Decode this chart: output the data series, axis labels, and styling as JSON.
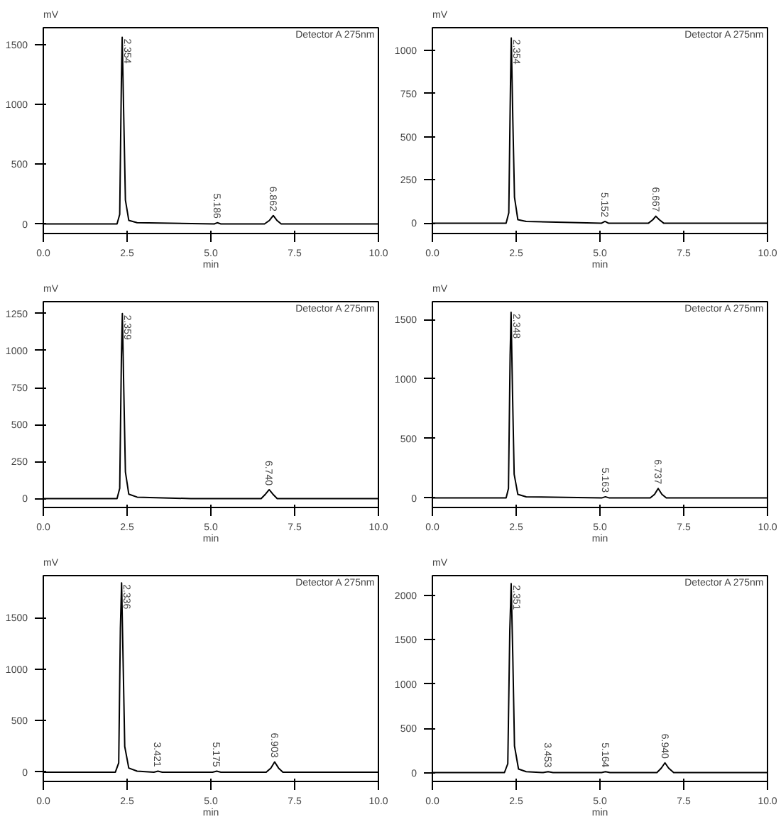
{
  "chart_data": [
    {
      "type": "line",
      "xlabel": "min",
      "ylabel": "mV",
      "xlim": [
        0,
        10
      ],
      "ylim": [
        -80,
        1640
      ],
      "xticks": [
        {
          "value": 0,
          "label": "0.0"
        },
        {
          "value": 2.5,
          "label": "2.5"
        },
        {
          "value": 5,
          "label": "5.0"
        },
        {
          "value": 7.5,
          "label": "7.5"
        },
        {
          "value": 10,
          "label": "10.0"
        }
      ],
      "yticks": [
        0,
        500,
        1000,
        1500
      ],
      "series": [
        {
          "color": "#000000",
          "x": [
            0,
            2.2,
            2.28,
            2.33,
            2.354,
            2.4,
            2.45,
            2.55,
            2.8,
            5.1,
            5.19,
            5.3,
            6.6,
            6.75,
            6.862,
            6.97,
            7.1,
            7.7,
            10
          ],
          "values": [
            0,
            0,
            80,
            1200,
            1560,
            900,
            200,
            30,
            10,
            0,
            10,
            0,
            0,
            30,
            70,
            30,
            0,
            0,
            0
          ]
        }
      ],
      "annotations": [
        "Detector A 275nm",
        {
          "text": "2.354",
          "x": 2.354,
          "y": 1560
        },
        {
          "text": "5.186",
          "x": 5.186,
          "y": 10
        },
        {
          "text": "6.862",
          "x": 6.862,
          "y": 70
        }
      ]
    },
    {
      "type": "line",
      "xlabel": "min",
      "ylabel": "mV",
      "xlim": [
        0,
        10
      ],
      "ylim": [
        -60,
        1130
      ],
      "xticks": [
        {
          "value": 0,
          "label": "0.0"
        },
        {
          "value": 2.5,
          "label": "2.5"
        },
        {
          "value": 5,
          "label": "5.0"
        },
        {
          "value": 7.5,
          "label": "7.5"
        },
        {
          "value": 10,
          "label": "10.0"
        }
      ],
      "yticks": [
        0,
        250,
        500,
        750,
        1000
      ],
      "series": [
        {
          "color": "#000000",
          "x": [
            0,
            2.2,
            2.28,
            2.33,
            2.354,
            2.4,
            2.45,
            2.55,
            2.8,
            5.05,
            5.15,
            5.25,
            6.45,
            6.58,
            6.667,
            6.77,
            6.9,
            7.5,
            10
          ],
          "values": [
            0,
            0,
            60,
            800,
            1070,
            600,
            150,
            20,
            10,
            0,
            10,
            0,
            0,
            20,
            40,
            20,
            0,
            0,
            0
          ]
        }
      ],
      "annotations": [
        "Detector A 275nm",
        {
          "text": "2.354",
          "x": 2.354,
          "y": 1070
        },
        {
          "text": "5.152",
          "x": 5.152,
          "y": 10
        },
        {
          "text": "6.667",
          "x": 6.667,
          "y": 40
        }
      ]
    },
    {
      "type": "line",
      "xlabel": "min",
      "ylabel": "mV",
      "xlim": [
        0,
        10
      ],
      "ylim": [
        -60,
        1330
      ],
      "xticks": [
        {
          "value": 0,
          "label": "0.0"
        },
        {
          "value": 2.5,
          "label": "2.5"
        },
        {
          "value": 5,
          "label": "5.0"
        },
        {
          "value": 7.5,
          "label": "7.5"
        },
        {
          "value": 10,
          "label": "10.0"
        }
      ],
      "yticks": [
        0,
        250,
        500,
        750,
        1000,
        1250
      ],
      "series": [
        {
          "color": "#000000",
          "x": [
            0,
            2.2,
            2.28,
            2.33,
            2.359,
            2.4,
            2.45,
            2.55,
            2.8,
            4.4,
            6.5,
            6.63,
            6.74,
            6.85,
            6.98,
            7.5,
            10
          ],
          "values": [
            0,
            0,
            70,
            950,
            1250,
            750,
            180,
            30,
            10,
            0,
            0,
            30,
            60,
            30,
            0,
            0,
            0
          ]
        }
      ],
      "annotations": [
        "Detector A 275nm",
        {
          "text": "2.359",
          "x": 2.359,
          "y": 1250
        },
        {
          "text": "6.740",
          "x": 6.74,
          "y": 60
        }
      ]
    },
    {
      "type": "line",
      "xlabel": "min",
      "ylabel": "mV",
      "xlim": [
        0,
        10
      ],
      "ylim": [
        -80,
        1650
      ],
      "xticks": [
        {
          "value": 0,
          "label": "0.0"
        },
        {
          "value": 2.5,
          "label": "2.5"
        },
        {
          "value": 5,
          "label": "5.0"
        },
        {
          "value": 7.5,
          "label": "7.5"
        },
        {
          "value": 10,
          "label": "10.0"
        }
      ],
      "yticks": [
        0,
        500,
        1000,
        1500
      ],
      "series": [
        {
          "color": "#000000",
          "x": [
            0,
            2.2,
            2.27,
            2.32,
            2.348,
            2.39,
            2.44,
            2.55,
            2.8,
            5.05,
            5.163,
            5.28,
            6.5,
            6.63,
            6.737,
            6.85,
            6.98,
            7.6,
            10
          ],
          "values": [
            0,
            0,
            80,
            1200,
            1560,
            900,
            200,
            30,
            10,
            0,
            10,
            0,
            0,
            30,
            80,
            30,
            0,
            0,
            0
          ]
        }
      ],
      "annotations": [
        "Detector A 275nm",
        {
          "text": "2.348",
          "x": 2.348,
          "y": 1560
        },
        {
          "text": "5.163",
          "x": 5.163,
          "y": 10
        },
        {
          "text": "6.737",
          "x": 6.737,
          "y": 80
        }
      ]
    },
    {
      "type": "line",
      "xlabel": "min",
      "ylabel": "mV",
      "xlim": [
        0,
        10
      ],
      "ylim": [
        -90,
        1910
      ],
      "xticks": [
        {
          "value": 0,
          "label": "0.0"
        },
        {
          "value": 2.5,
          "label": "2.5"
        },
        {
          "value": 5,
          "label": "5.0"
        },
        {
          "value": 7.5,
          "label": "7.5"
        },
        {
          "value": 10,
          "label": "10.0"
        }
      ],
      "yticks": [
        0,
        500,
        1000,
        1500
      ],
      "series": [
        {
          "color": "#000000",
          "x": [
            0,
            2.15,
            2.25,
            2.3,
            2.336,
            2.38,
            2.43,
            2.55,
            2.8,
            3.3,
            3.421,
            3.55,
            5.05,
            5.175,
            5.3,
            6.65,
            6.79,
            6.903,
            7.02,
            7.15,
            7.8,
            10
          ],
          "values": [
            0,
            0,
            90,
            1400,
            1840,
            1100,
            250,
            40,
            10,
            0,
            10,
            0,
            0,
            10,
            0,
            0,
            40,
            100,
            40,
            0,
            0,
            0
          ]
        }
      ],
      "annotations": [
        "Detector A 275nm",
        {
          "text": "2.336",
          "x": 2.336,
          "y": 1840
        },
        {
          "text": "3.421",
          "x": 3.421,
          "y": 10
        },
        {
          "text": "5.175",
          "x": 5.175,
          "y": 10
        },
        {
          "text": "6.903",
          "x": 6.903,
          "y": 100
        }
      ]
    },
    {
      "type": "line",
      "xlabel": "min",
      "ylabel": "mV",
      "xlim": [
        0,
        10
      ],
      "ylim": [
        -100,
        2220
      ],
      "xticks": [
        {
          "value": 0,
          "label": "0.0"
        },
        {
          "value": 2.5,
          "label": "2.5"
        },
        {
          "value": 5,
          "label": "5.0"
        },
        {
          "value": 7.5,
          "label": "7.5"
        },
        {
          "value": 10,
          "label": "10.0"
        }
      ],
      "yticks": [
        0,
        500,
        1000,
        1500,
        2000
      ],
      "series": [
        {
          "color": "#000000",
          "x": [
            0,
            2.15,
            2.25,
            2.31,
            2.351,
            2.4,
            2.45,
            2.57,
            2.8,
            3.3,
            3.453,
            3.6,
            5.05,
            5.164,
            5.3,
            6.7,
            6.83,
            6.94,
            7.05,
            7.2,
            8.4,
            10
          ],
          "values": [
            0,
            0,
            100,
            1600,
            2130,
            1300,
            300,
            40,
            10,
            0,
            10,
            0,
            0,
            10,
            0,
            0,
            50,
            110,
            50,
            0,
            0,
            0
          ]
        }
      ],
      "annotations": [
        "Detector A 275nm",
        {
          "text": "2.351",
          "x": 2.351,
          "y": 2130
        },
        {
          "text": "3.453",
          "x": 3.453,
          "y": 10
        },
        {
          "text": "5.164",
          "x": 5.164,
          "y": 10
        },
        {
          "text": "6.940",
          "x": 6.94,
          "y": 110
        }
      ]
    }
  ]
}
